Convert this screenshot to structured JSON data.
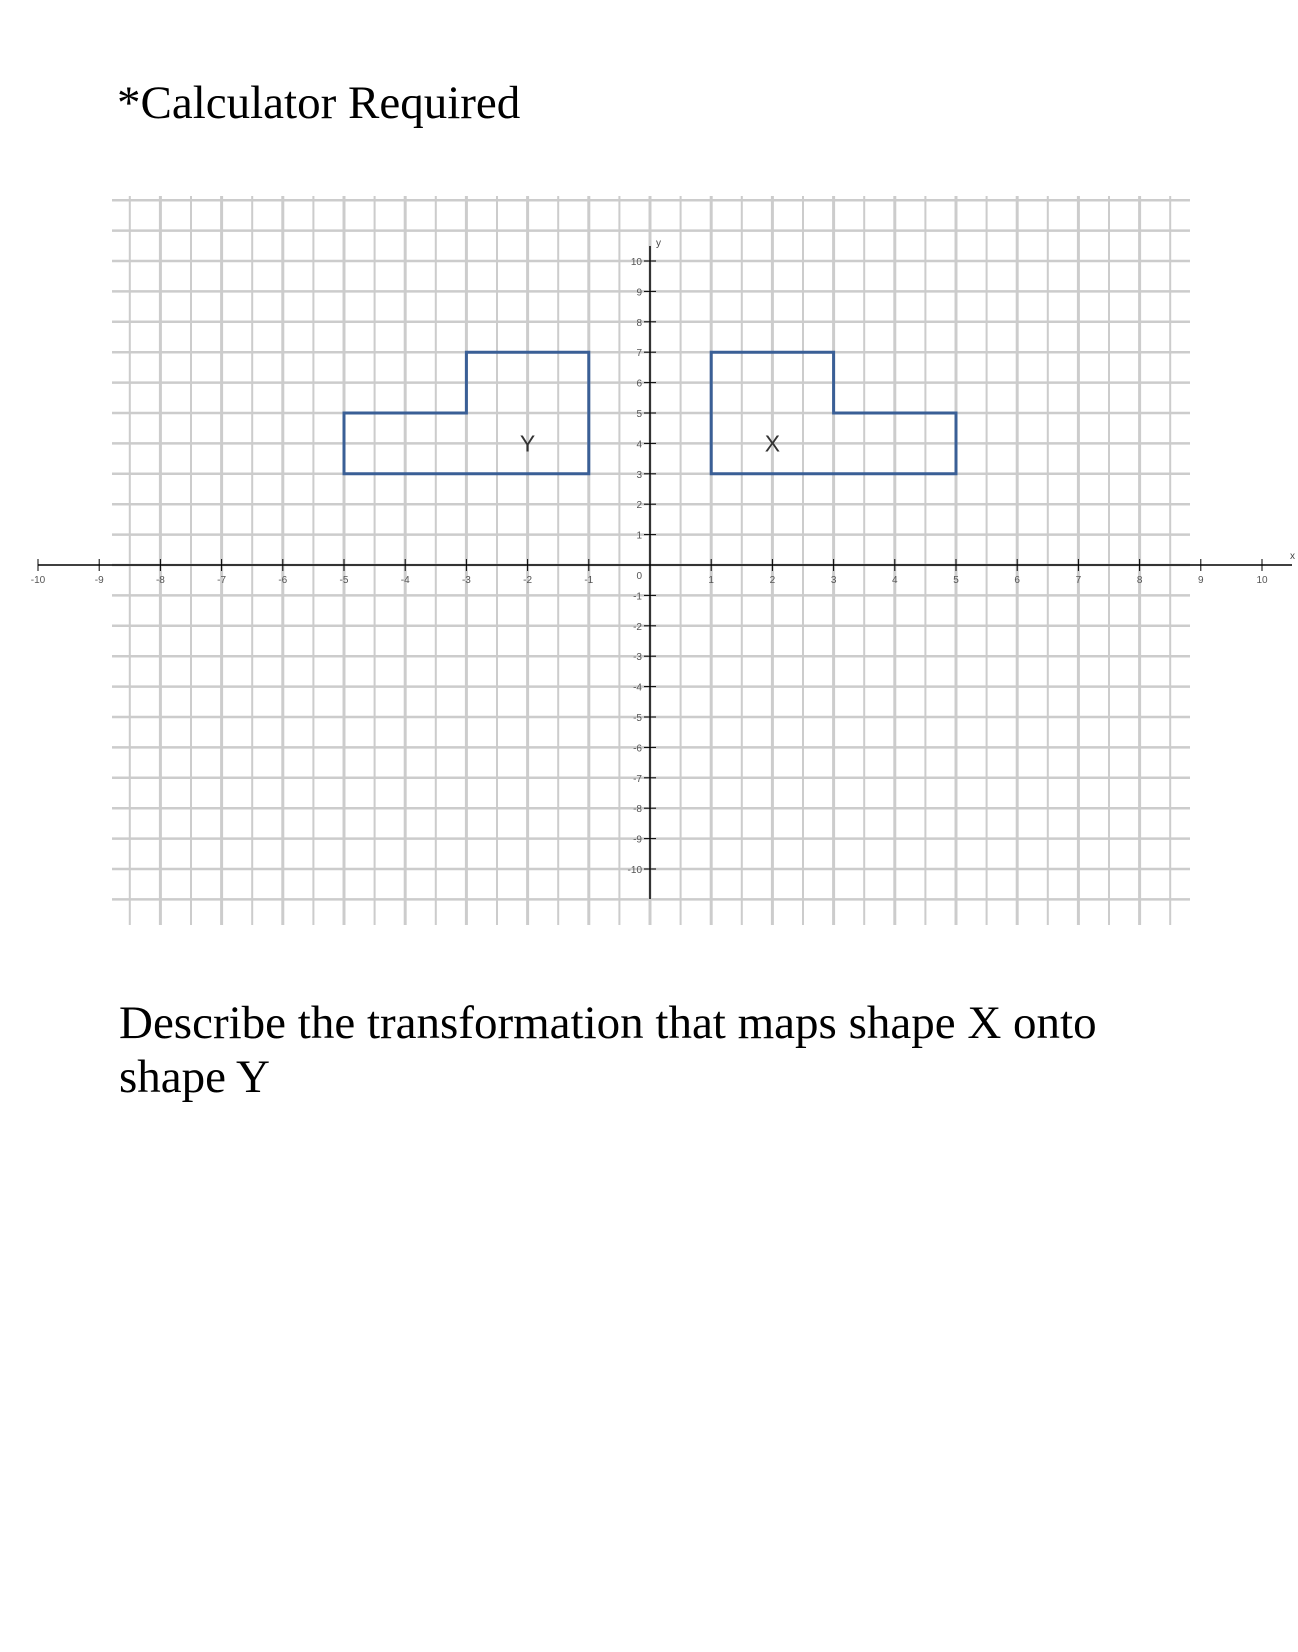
{
  "header": {
    "title": "*Calculator Required"
  },
  "question": {
    "text": "Describe the transformation that maps shape X onto shape Y"
  },
  "graph": {
    "axes": {
      "x_name": "x",
      "y_name": "y",
      "xlim": [
        -10,
        10
      ],
      "ylim": [
        -10,
        10
      ],
      "origin_label": "0"
    },
    "colors": {
      "shape": "#3a5f96",
      "grid": "#cccccc",
      "axis": "#000000"
    },
    "shapes": [
      {
        "label": "X",
        "vertices": [
          [
            1,
            3
          ],
          [
            1,
            7
          ],
          [
            3,
            7
          ],
          [
            3,
            5
          ],
          [
            5,
            5
          ],
          [
            5,
            3
          ]
        ],
        "label_at": [
          2,
          4
        ]
      },
      {
        "label": "Y",
        "vertices": [
          [
            -1,
            3
          ],
          [
            -1,
            7
          ],
          [
            -3,
            7
          ],
          [
            -3,
            5
          ],
          [
            -5,
            5
          ],
          [
            -5,
            3
          ]
        ],
        "label_at": [
          -2,
          4
        ]
      }
    ]
  }
}
